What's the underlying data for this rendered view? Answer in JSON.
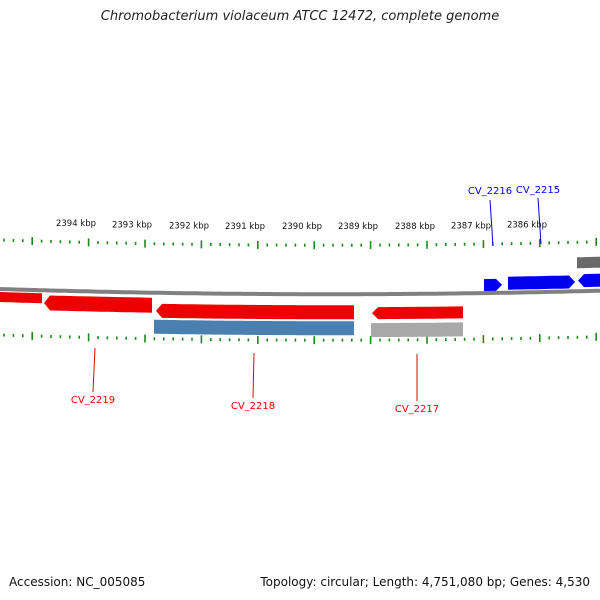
{
  "title": "Chromobacterium violaceum ATCC 12472, complete genome",
  "footer": {
    "accession": "Accession: NC_005085",
    "summary": "Topology: circular; Length: 4,751,080 bp; Genes: 4,530"
  },
  "colors": {
    "forward_gene": "#0000ee",
    "reverse_gene": "#ee0000",
    "backbone": "#808080",
    "ticks": "#1a8a1a",
    "reverse_cds_product": "#4a7fb0",
    "pseudo_product": "#a8a8a8",
    "dark_product": "#6a6a6a"
  },
  "scale": {
    "unit": "kbp",
    "major_labels": [
      "2394 kbp",
      "2393 kbp",
      "2392 kbp",
      "2391 kbp",
      "2390 kbp",
      "2389 kbp",
      "2388 kbp",
      "2387 kbp",
      "2386 kbp"
    ]
  },
  "genes": [
    {
      "label": "CV_2219",
      "strand": "reverse"
    },
    {
      "label": "CV_2218",
      "strand": "reverse"
    },
    {
      "label": "CV_2217",
      "strand": "reverse"
    },
    {
      "label": "CV_2216",
      "strand": "forward"
    },
    {
      "label": "CV_2215",
      "strand": "forward"
    }
  ]
}
